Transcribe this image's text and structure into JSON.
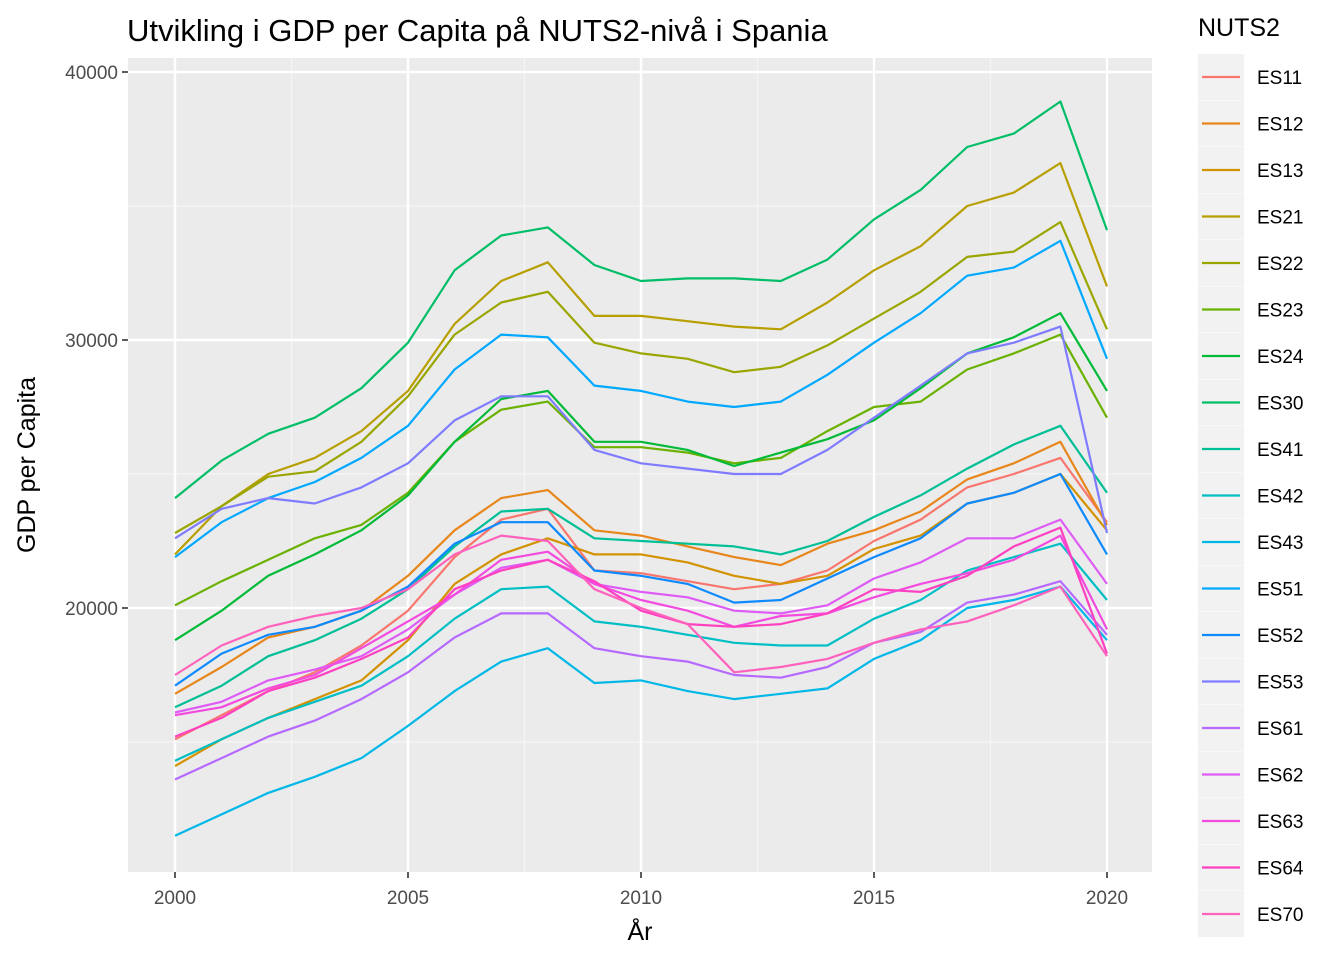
{
  "chart_data": {
    "type": "line",
    "title": "Utvikling i GDP per Capita på NUTS2-nivå i Spania",
    "xlabel": "År",
    "ylabel": "GDP per Capita",
    "legend_title": "NUTS2",
    "legend_position": "right",
    "grid": true,
    "xlim": [
      2000,
      2020
    ],
    "ylim": [
      10000,
      40000
    ],
    "x_ticks": [
      2000,
      2005,
      2010,
      2015,
      2020
    ],
    "x_tick_labels": [
      "2000",
      "2005",
      "2010",
      "2015",
      "2020"
    ],
    "y_ticks": [
      20000,
      30000,
      40000
    ],
    "y_tick_labels": [
      "20000",
      "30000",
      "40000"
    ],
    "x": [
      2000,
      2001,
      2002,
      2003,
      2004,
      2005,
      2006,
      2007,
      2008,
      2009,
      2010,
      2011,
      2012,
      2013,
      2014,
      2015,
      2016,
      2017,
      2018,
      2019,
      2020
    ],
    "series": [
      {
        "name": "ES11",
        "color": "#F8766D",
        "values": [
          15100,
          16000,
          16900,
          17600,
          18600,
          19900,
          21900,
          23300,
          23700,
          21400,
          21300,
          21000,
          20700,
          20900,
          21400,
          22500,
          23300,
          24500,
          25000,
          25600,
          23200
        ]
      },
      {
        "name": "ES12",
        "color": "#E7861B",
        "values": [
          16800,
          17800,
          18900,
          19300,
          19900,
          21200,
          22900,
          24100,
          24400,
          22900,
          22700,
          22300,
          21900,
          21600,
          22400,
          22900,
          23600,
          24800,
          25400,
          26200,
          23100
        ]
      },
      {
        "name": "ES13",
        "color": "#D39200",
        "values": [
          14100,
          15100,
          15900,
          16600,
          17300,
          18800,
          20900,
          22000,
          22600,
          22000,
          22000,
          21700,
          21200,
          20900,
          21200,
          22200,
          22700,
          23900,
          24300,
          25000,
          22900
        ]
      },
      {
        "name": "ES21",
        "color": "#B79F00",
        "values": [
          22000,
          23800,
          25000,
          25600,
          26600,
          28100,
          30600,
          32200,
          32900,
          30900,
          30900,
          30700,
          30500,
          30400,
          31400,
          32600,
          33500,
          35000,
          35500,
          36600,
          32000
        ]
      },
      {
        "name": "ES22",
        "color": "#9AA600",
        "values": [
          22800,
          23800,
          24900,
          25100,
          26200,
          27900,
          30200,
          31400,
          31800,
          29900,
          29500,
          29300,
          28800,
          29000,
          29800,
          30800,
          31800,
          33100,
          33300,
          34400,
          30400
        ]
      },
      {
        "name": "ES23",
        "color": "#6AB100",
        "values": [
          20100,
          21000,
          21800,
          22600,
          23100,
          24300,
          26200,
          27400,
          27700,
          26000,
          26000,
          25800,
          25400,
          25600,
          26600,
          27500,
          27700,
          28900,
          29500,
          30200,
          27100
        ]
      },
      {
        "name": "ES24",
        "color": "#00BA38",
        "values": [
          18800,
          19900,
          21200,
          22000,
          22900,
          24200,
          26200,
          27800,
          28100,
          26200,
          26200,
          25900,
          25300,
          25800,
          26300,
          27000,
          28200,
          29500,
          30100,
          31000,
          28100
        ]
      },
      {
        "name": "ES30",
        "color": "#00BE67",
        "values": [
          24100,
          25500,
          26500,
          27100,
          28200,
          29900,
          32600,
          33900,
          34200,
          32800,
          32200,
          32300,
          32300,
          32200,
          33000,
          34500,
          35600,
          37200,
          37700,
          38900,
          34100
        ]
      },
      {
        "name": "ES41",
        "color": "#00BF96",
        "values": [
          16300,
          17100,
          18200,
          18800,
          19600,
          20700,
          22300,
          23600,
          23700,
          22600,
          22500,
          22400,
          22300,
          22000,
          22500,
          23400,
          24200,
          25200,
          26100,
          26800,
          24300
        ]
      },
      {
        "name": "ES42",
        "color": "#00BFC4",
        "values": [
          14300,
          15100,
          15900,
          16500,
          17100,
          18200,
          19600,
          20700,
          20800,
          19500,
          19300,
          19000,
          18700,
          18600,
          18600,
          19600,
          20300,
          21400,
          21900,
          22400,
          20300
        ]
      },
      {
        "name": "ES43",
        "color": "#00B8E7",
        "values": [
          11500,
          12300,
          13100,
          13700,
          14400,
          15600,
          16900,
          18000,
          18500,
          17200,
          17300,
          16900,
          16600,
          16800,
          17000,
          18100,
          18800,
          20000,
          20300,
          20800,
          18800
        ]
      },
      {
        "name": "ES51",
        "color": "#00A9FF",
        "values": [
          21900,
          23200,
          24100,
          24700,
          25600,
          26800,
          28900,
          30200,
          30100,
          28300,
          28100,
          27700,
          27500,
          27700,
          28700,
          29900,
          31000,
          32400,
          32700,
          33700,
          29300
        ]
      },
      {
        "name": "ES52",
        "color": "#0E8AFF",
        "values": [
          17100,
          18300,
          19000,
          19300,
          19900,
          20800,
          22400,
          23200,
          23200,
          21400,
          21200,
          20900,
          20200,
          20300,
          21100,
          21900,
          22600,
          23900,
          24300,
          25000,
          22000
        ]
      },
      {
        "name": "ES53",
        "color": "#7F7CFF",
        "values": [
          22600,
          23700,
          24100,
          23900,
          24500,
          25400,
          27000,
          27900,
          27900,
          25900,
          25400,
          25200,
          25000,
          25000,
          25900,
          27100,
          28300,
          29500,
          29900,
          30500,
          22800
        ]
      },
      {
        "name": "ES61",
        "color": "#B669FF",
        "values": [
          13600,
          14400,
          15200,
          15800,
          16600,
          17600,
          18900,
          19800,
          19800,
          18500,
          18200,
          18000,
          17500,
          17400,
          17800,
          18700,
          19100,
          20200,
          20500,
          21000,
          19000
        ]
      },
      {
        "name": "ES62",
        "color": "#DE5CF5",
        "values": [
          16100,
          16500,
          17300,
          17700,
          18200,
          19200,
          20500,
          21500,
          21800,
          20900,
          20600,
          20400,
          19900,
          19800,
          20100,
          21100,
          21700,
          22600,
          22600,
          23300,
          20900
        ]
      },
      {
        "name": "ES63",
        "color": "#F34AE0",
        "values": [
          16000,
          16300,
          17000,
          17500,
          18500,
          19500,
          20500,
          21800,
          22100,
          20900,
          20300,
          19900,
          19300,
          19700,
          19800,
          20400,
          20900,
          21300,
          21800,
          22700,
          19200
        ]
      },
      {
        "name": "ES64",
        "color": "#FF40C1",
        "values": [
          15200,
          15900,
          16900,
          17400,
          18100,
          18900,
          20700,
          21400,
          21800,
          21000,
          19900,
          19400,
          19300,
          19400,
          19800,
          20700,
          20600,
          21200,
          22300,
          23000,
          18300
        ]
      },
      {
        "name": "ES70",
        "color": "#FF62BC",
        "values": [
          17500,
          18600,
          19300,
          19700,
          20000,
          20700,
          22000,
          22700,
          22500,
          20700,
          20000,
          19400,
          17600,
          17800,
          18100,
          18700,
          19200,
          19500,
          20100,
          20800,
          18200
        ]
      }
    ]
  }
}
